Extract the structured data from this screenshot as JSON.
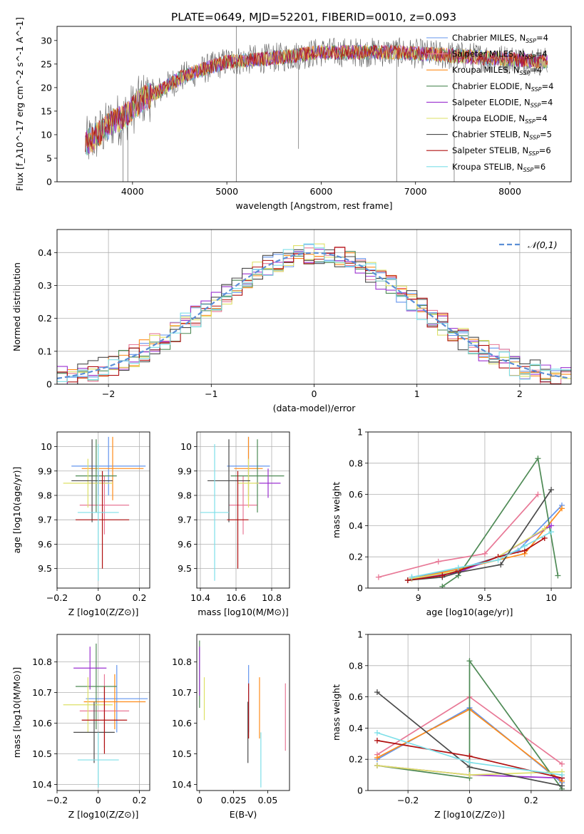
{
  "figure_title": "PLATE=0649, MJD=52201, FIBERID=0010, z=0.093",
  "colors": {
    "Chabrier MILES": "#6495ed",
    "Salpeter MILES": "#e87896",
    "Kroupa MILES": "#ff8c1a",
    "Chabrier ELODIE": "#4e8a55",
    "Salpeter ELODIE": "#9b30d0",
    "Kroupa ELODIE": "#dde066",
    "Chabrier STELIB": "#4a4a4a",
    "Salpeter STELIB": "#b01010",
    "Kroupa STELIB": "#7ddfe8",
    "normal_curve": "#5b8fd6",
    "grid": "#b0b0b0"
  },
  "chart_data": [
    {
      "id": "spectrum",
      "type": "line",
      "title": "PLATE=0649, MJD=52201, FIBERID=0010, z=0.093",
      "xlabel": "wavelength [Angstrom, rest frame]",
      "ylabel": "Flux [f_λ10^-17 erg cm^-2 s^-1 A^-1]",
      "xlim": [
        3200,
        8650
      ],
      "ylim": [
        0,
        33
      ],
      "xticks": [
        4000,
        5000,
        6000,
        7000,
        8000
      ],
      "yticks": [
        0,
        5,
        10,
        15,
        20,
        25,
        30
      ],
      "grid": false,
      "legend_position": "right",
      "legend": [
        "Chabrier MILES, N_SSP=4",
        "Salpeter MILES, N_SSP=4",
        "Kroupa MILES, N_SSP=4",
        "Chabrier ELODIE, N_SSP=4",
        "Salpeter ELODIE, N_SSP=4",
        "Kroupa ELODIE, N_SSP=4",
        "Chabrier STELIB, N_SSP=5",
        "Salpeter STELIB, N_SSP=6",
        "Kroupa STELIB, N_SSP=6"
      ],
      "continuum": {
        "x": [
          3500,
          3600,
          3700,
          3800,
          3900,
          4000,
          4100,
          4300,
          4500,
          4700,
          5000,
          5300,
          5600,
          6000,
          6400,
          6800,
          7200,
          7600,
          8000,
          8400
        ],
        "y": [
          8,
          9.5,
          11,
          13,
          13.5,
          15.5,
          17.5,
          19.5,
          22,
          23.5,
          25.5,
          26,
          26.5,
          27.5,
          27.5,
          27.5,
          27,
          26.5,
          26,
          25.5
        ]
      }
    },
    {
      "id": "residuals",
      "type": "bar",
      "xlabel": "(data-model)/error",
      "ylabel": "Normed distribution",
      "xlim": [
        -2.5,
        2.5
      ],
      "ylim": [
        0,
        0.47
      ],
      "xticks": [
        -2,
        -1,
        0,
        1,
        2
      ],
      "yticks": [
        0.0,
        0.1,
        0.2,
        0.3,
        0.4
      ],
      "grid": true,
      "legend": [
        "𝒩(0,1)"
      ],
      "legend_position": "top-right",
      "bin_width": 0.1
    },
    {
      "id": "age_vs_Z",
      "type": "scatter",
      "xlabel": "Z [log10(Z/Z⊙)]",
      "ylabel": "age [log10(age/yr)]",
      "xlim": [
        -0.2,
        0.25
      ],
      "ylim": [
        9.42,
        10.06
      ],
      "xticks": [
        -0.2,
        0.0,
        0.2
      ],
      "yticks": [
        9.5,
        9.6,
        9.7,
        9.8,
        9.9,
        10.0
      ],
      "grid": true,
      "points": [
        {
          "model": "Chabrier MILES",
          "x": 0.05,
          "xerr": 0.18,
          "y": 9.92,
          "yerr": 0.12
        },
        {
          "model": "Salpeter MILES",
          "x": 0.03,
          "xerr": 0.12,
          "y": 9.76,
          "yerr": 0.12
        },
        {
          "model": "Kroupa MILES",
          "x": 0.07,
          "xerr": 0.15,
          "y": 9.91,
          "yerr": 0.13
        },
        {
          "model": "Chabrier ELODIE",
          "x": -0.01,
          "xerr": 0.1,
          "y": 9.88,
          "yerr": 0.15
        },
        {
          "model": "Salpeter ELODIE",
          "x": 0.0,
          "xerr": 0.05,
          "y": 9.85,
          "yerr": 0.05
        },
        {
          "model": "Kroupa ELODIE",
          "x": -0.05,
          "xerr": 0.12,
          "y": 9.85,
          "yerr": 0.1
        },
        {
          "model": "Chabrier STELIB",
          "x": -0.03,
          "xerr": 0.1,
          "y": 9.86,
          "yerr": 0.17
        },
        {
          "model": "Salpeter STELIB",
          "x": 0.02,
          "xerr": 0.13,
          "y": 9.7,
          "yerr": 0.2
        },
        {
          "model": "Kroupa STELIB",
          "x": 0.0,
          "xerr": 0.1,
          "y": 9.73,
          "yerr": 0.28
        }
      ]
    },
    {
      "id": "age_vs_mass",
      "type": "scatter",
      "xlabel": "mass [log10(M/M⊙)]",
      "ylabel": "",
      "xlim": [
        10.38,
        10.9
      ],
      "ylim": [
        9.42,
        10.06
      ],
      "xticks": [
        10.4,
        10.6,
        10.8
      ],
      "yticks": [
        9.5,
        9.6,
        9.7,
        9.8,
        9.9,
        10.0
      ],
      "grid": true,
      "points": [
        {
          "model": "Chabrier MILES",
          "x": 10.67,
          "xerr": 0.12,
          "y": 9.92,
          "yerr": 0.12
        },
        {
          "model": "Salpeter MILES",
          "x": 10.64,
          "xerr": 0.08,
          "y": 9.76,
          "yerr": 0.12
        },
        {
          "model": "Kroupa MILES",
          "x": 10.67,
          "xerr": 0.08,
          "y": 9.91,
          "yerr": 0.13
        },
        {
          "model": "Chabrier ELODIE",
          "x": 10.72,
          "xerr": 0.15,
          "y": 9.88,
          "yerr": 0.15
        },
        {
          "model": "Salpeter ELODIE",
          "x": 10.78,
          "xerr": 0.07,
          "y": 9.85,
          "yerr": 0.06
        },
        {
          "model": "Kroupa ELODIE",
          "x": 10.67,
          "xerr": 0.06,
          "y": 9.85,
          "yerr": 0.1
        },
        {
          "model": "Chabrier STELIB",
          "x": 10.56,
          "xerr": 0.12,
          "y": 9.86,
          "yerr": 0.17
        },
        {
          "model": "Salpeter STELIB",
          "x": 10.61,
          "xerr": 0.06,
          "y": 9.7,
          "yerr": 0.2
        },
        {
          "model": "Kroupa STELIB",
          "x": 10.48,
          "xerr": 0.08,
          "y": 9.73,
          "yerr": 0.28
        }
      ]
    },
    {
      "id": "weight_vs_age",
      "type": "line",
      "xlabel": "age [log10(age/yr)]",
      "ylabel": "mass weight",
      "xlim": [
        8.62,
        10.15
      ],
      "ylim": [
        0,
        1.0
      ],
      "xticks": [
        9.0,
        9.5,
        10.0
      ],
      "yticks": [
        0.0,
        0.2,
        0.4,
        0.6,
        0.8,
        1.0
      ],
      "grid": true,
      "series": [
        {
          "name": "Chabrier MILES",
          "x": [
            8.95,
            9.3,
            9.75,
            10.08
          ],
          "y": [
            0.07,
            0.12,
            0.24,
            0.53
          ]
        },
        {
          "name": "Salpeter MILES",
          "x": [
            8.7,
            9.15,
            9.5,
            9.9
          ],
          "y": [
            0.07,
            0.17,
            0.22,
            0.6
          ]
        },
        {
          "name": "Kroupa MILES",
          "x": [
            8.95,
            9.35,
            9.8,
            10.08
          ],
          "y": [
            0.06,
            0.13,
            0.22,
            0.51
          ]
        },
        {
          "name": "Chabrier ELODIE",
          "x": [
            9.18,
            9.3,
            9.9,
            10.05
          ],
          "y": [
            0.01,
            0.08,
            0.83,
            0.08
          ]
        },
        {
          "name": "Salpeter ELODIE",
          "x": [
            8.95,
            9.3,
            9.6,
            10.0
          ],
          "y": [
            0.06,
            0.1,
            0.2,
            0.4
          ]
        },
        {
          "name": "Kroupa ELODIE",
          "x": [
            8.95,
            9.3,
            9.6,
            9.95
          ],
          "y": [
            0.06,
            0.11,
            0.2,
            0.38
          ]
        },
        {
          "name": "Chabrier STELIB",
          "x": [
            8.92,
            9.18,
            9.3,
            9.62,
            10.0
          ],
          "y": [
            0.05,
            0.07,
            0.1,
            0.15,
            0.63
          ]
        },
        {
          "name": "Salpeter STELIB",
          "x": [
            8.92,
            9.18,
            9.3,
            9.6,
            9.8,
            9.95
          ],
          "y": [
            0.05,
            0.08,
            0.11,
            0.2,
            0.24,
            0.32
          ]
        },
        {
          "name": "Kroupa STELIB",
          "x": [
            8.95,
            9.3,
            9.6,
            9.8,
            10.0
          ],
          "y": [
            0.07,
            0.13,
            0.18,
            0.27,
            0.36
          ]
        }
      ]
    },
    {
      "id": "mass_vs_Z",
      "type": "scatter",
      "xlabel": "Z [log10(Z/Z⊙)]",
      "ylabel": "mass [log10(M/M⊙)]",
      "xlim": [
        -0.2,
        0.25
      ],
      "ylim": [
        10.38,
        10.89
      ],
      "xticks": [
        -0.2,
        0.0,
        0.2
      ],
      "yticks": [
        10.4,
        10.5,
        10.6,
        10.7,
        10.8
      ],
      "grid": true,
      "points": [
        {
          "model": "Chabrier MILES",
          "x": 0.09,
          "xerr": 0.15,
          "y": 10.68,
          "yerr": 0.11
        },
        {
          "model": "Salpeter MILES",
          "x": 0.03,
          "xerr": 0.12,
          "y": 10.64,
          "yerr": 0.12
        },
        {
          "model": "Kroupa MILES",
          "x": 0.08,
          "xerr": 0.15,
          "y": 10.67,
          "yerr": 0.09
        },
        {
          "model": "Chabrier ELODIE",
          "x": -0.01,
          "xerr": 0.1,
          "y": 10.72,
          "yerr": 0.14
        },
        {
          "model": "Salpeter ELODIE",
          "x": -0.04,
          "xerr": 0.08,
          "y": 10.78,
          "yerr": 0.07
        },
        {
          "model": "Kroupa ELODIE",
          "x": -0.05,
          "xerr": 0.12,
          "y": 10.66,
          "yerr": 0.09
        },
        {
          "model": "Chabrier STELIB",
          "x": -0.02,
          "xerr": 0.1,
          "y": 10.57,
          "yerr": 0.1
        },
        {
          "model": "Salpeter STELIB",
          "x": 0.03,
          "xerr": 0.11,
          "y": 10.61,
          "yerr": 0.11
        },
        {
          "model": "Kroupa STELIB",
          "x": 0.0,
          "xerr": 0.1,
          "y": 10.48,
          "yerr": 0.09
        }
      ]
    },
    {
      "id": "mass_vs_ebv",
      "type": "scatter",
      "xlabel": "E(B-V)",
      "ylabel": "",
      "xlim": [
        -0.002,
        0.066
      ],
      "ylim": [
        10.38,
        10.89
      ],
      "xticks": [
        0.0,
        0.025,
        0.05
      ],
      "yticks": [
        10.4,
        10.5,
        10.6,
        10.7,
        10.8
      ],
      "grid": false,
      "points": [
        {
          "model": "Chabrier MILES",
          "x": 0.036,
          "xerr": 0,
          "y": 10.68,
          "yerr": 0.11
        },
        {
          "model": "Salpeter MILES",
          "x": 0.063,
          "xerr": 0,
          "y": 10.62,
          "yerr": 0.11
        },
        {
          "model": "Kroupa MILES",
          "x": 0.044,
          "xerr": 0,
          "y": 10.65,
          "yerr": 0.1
        },
        {
          "model": "Chabrier ELODIE",
          "x": 0.0,
          "xerr": 0,
          "y": 10.76,
          "yerr": 0.11
        },
        {
          "model": "Salpeter ELODIE",
          "x": 0.0,
          "xerr": 0,
          "y": 10.77,
          "yerr": 0.08
        },
        {
          "model": "Kroupa ELODIE",
          "x": 0.0035,
          "xerr": 0,
          "y": 10.68,
          "yerr": 0.07
        },
        {
          "model": "Chabrier STELIB",
          "x": 0.0355,
          "xerr": 0,
          "y": 10.57,
          "yerr": 0.1
        },
        {
          "model": "Salpeter STELIB",
          "x": 0.036,
          "xerr": 0,
          "y": 10.64,
          "yerr": 0.09
        },
        {
          "model": "Kroupa STELIB",
          "x": 0.045,
          "xerr": 0,
          "y": 10.48,
          "yerr": 0.09
        }
      ]
    },
    {
      "id": "weight_vs_Z",
      "type": "line",
      "xlabel": "Z [log10(Z/Z⊙)]",
      "ylabel": "mass weight",
      "xlim": [
        -0.33,
        0.33
      ],
      "ylim": [
        0,
        1.0
      ],
      "xticks": [
        -0.2,
        0.0,
        0.2
      ],
      "yticks": [
        0.0,
        0.2,
        0.4,
        0.6,
        0.8,
        1.0
      ],
      "grid": true,
      "series": [
        {
          "name": "Chabrier MILES",
          "x": [
            -0.3,
            0.0,
            0.3
          ],
          "y": [
            0.2,
            0.53,
            0.05
          ]
        },
        {
          "name": "Salpeter MILES",
          "x": [
            -0.3,
            0.0,
            0.3
          ],
          "y": [
            0.23,
            0.6,
            0.17
          ]
        },
        {
          "name": "Kroupa MILES",
          "x": [
            -0.3,
            0.0,
            0.3
          ],
          "y": [
            0.21,
            0.52,
            0.06
          ]
        },
        {
          "name": "Chabrier ELODIE",
          "x": [
            -0.3,
            0.0,
            0.0,
            0.3
          ],
          "y": [
            0.16,
            0.08,
            0.83,
            0.01
          ]
        },
        {
          "name": "Salpeter ELODIE",
          "x": [
            -0.3,
            0.0,
            0.3
          ],
          "y": [
            0.16,
            0.1,
            0.08
          ]
        },
        {
          "name": "Kroupa ELODIE",
          "x": [
            -0.3,
            0.0,
            0.3
          ],
          "y": [
            0.16,
            0.1,
            0.12
          ]
        },
        {
          "name": "Chabrier STELIB",
          "x": [
            -0.3,
            0.0,
            0.3
          ],
          "y": [
            0.63,
            0.15,
            0.03
          ]
        },
        {
          "name": "Salpeter STELIB",
          "x": [
            -0.3,
            0.0,
            0.3
          ],
          "y": [
            0.32,
            0.22,
            0.08
          ]
        },
        {
          "name": "Kroupa STELIB",
          "x": [
            -0.3,
            0.0,
            0.3
          ],
          "y": [
            0.37,
            0.18,
            0.1
          ]
        }
      ]
    }
  ]
}
